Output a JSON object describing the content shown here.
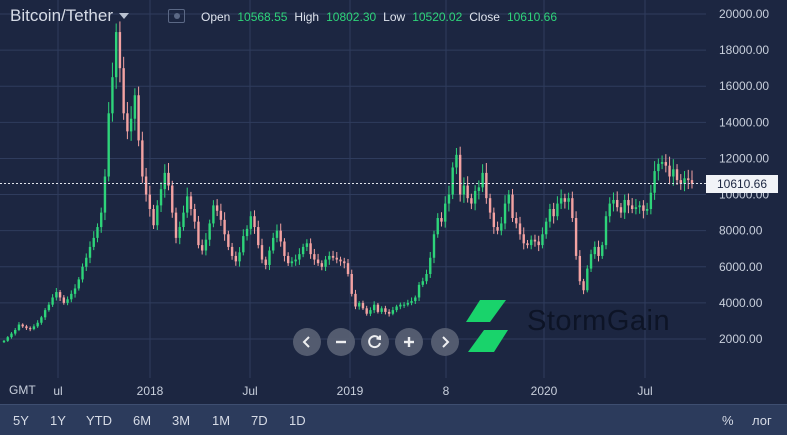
{
  "header": {
    "symbol": "Bitcoin/Tether",
    "open_label": "Open",
    "open_value": "10568.55",
    "high_label": "High",
    "high_value": "10802.30",
    "low_label": "Low",
    "low_value": "10520.02",
    "close_label": "Close",
    "close_value": "10610.66"
  },
  "timezone": "GMT",
  "ranges": [
    "5Y",
    "1Y",
    "YTD",
    "6M",
    "3M",
    "1M",
    "7D",
    "1D"
  ],
  "percent_button": "%",
  "log_button": "лог",
  "brand": "StormGain",
  "nav_icons": [
    "chevron-left-icon",
    "zoom-out-icon",
    "reset-icon",
    "zoom-in-icon",
    "chevron-right-icon"
  ],
  "colors": {
    "background": "#1c2641",
    "up": "#2ed47a",
    "down": "#f3a2a2",
    "price_line": "#e0e4ec"
  },
  "chart_data": {
    "type": "candlestick",
    "title": "Bitcoin/Tether",
    "current_price": 10610.66,
    "current_price_label": "10610.66",
    "ylim": [
      0,
      20700
    ],
    "y_ticks": [
      2000,
      4000,
      6000,
      8000,
      10000,
      12000,
      14000,
      16000,
      18000,
      20000
    ],
    "y_tick_labels": [
      "2000.00",
      "4000.00",
      "6000.00",
      "8000.00",
      "10000.00",
      "12000.00",
      "14000.00",
      "16000.00",
      "18000.00",
      "20000.00"
    ],
    "x_tick_labels": [
      "ul",
      "2018",
      "Jul",
      "2019",
      "8",
      "2020",
      "Jul"
    ],
    "grid": true,
    "close": [
      1900,
      2100,
      2300,
      2500,
      2800,
      2700,
      2600,
      2550,
      2700,
      2900,
      3200,
      3600,
      3900,
      4300,
      4600,
      4300,
      4000,
      4200,
      4500,
      4800,
      5300,
      6000,
      6500,
      7100,
      7600,
      8200,
      9000,
      11000,
      14500,
      16500,
      19000,
      17000,
      14500,
      13500,
      14200,
      15500,
      13000,
      11000,
      10000,
      9200,
      8300,
      9400,
      10300,
      11200,
      10500,
      9000,
      7600,
      8200,
      9000,
      9900,
      9200,
      8500,
      7200,
      6900,
      7500,
      8400,
      9400,
      9100,
      8600,
      7800,
      7100,
      6600,
      6300,
      6800,
      7700,
      8100,
      8800,
      8200,
      7200,
      6400,
      6100,
      6900,
      7600,
      8000,
      7400,
      6600,
      6200,
      6300,
      6400,
      6700,
      7100,
      7300,
      6700,
      6400,
      6200,
      6000,
      6400,
      6600,
      6500,
      6400,
      6300,
      6200,
      5600,
      4500,
      3800,
      4000,
      3700,
      3400,
      3600,
      3900,
      3500,
      3700,
      3500,
      3400,
      3600,
      3800,
      3900,
      3900,
      4000,
      4100,
      4300,
      5000,
      5200,
      5600,
      6500,
      7800,
      8700,
      8500,
      9500,
      10000,
      11500,
      12200,
      10000,
      10500,
      9800,
      9500,
      10200,
      10400,
      11200,
      9800,
      9000,
      8200,
      8000,
      8400,
      9500,
      10000,
      8700,
      8400,
      7800,
      7300,
      7200,
      7500,
      7400,
      7200,
      7800,
      8500,
      9200,
      8800,
      9500,
      9800,
      9600,
      9800,
      8700,
      6600,
      5200,
      4700,
      5900,
      6700,
      7100,
      6600,
      7200,
      8800,
      9500,
      9700,
      9300,
      9000,
      9700,
      9400,
      9200,
      9300,
      9400,
      9100,
      9200,
      10100,
      11300,
      11700,
      11800,
      11600,
      11000,
      11400,
      10800,
      10600,
      10900,
      10800,
      10600
    ]
  }
}
